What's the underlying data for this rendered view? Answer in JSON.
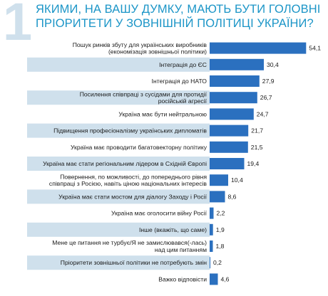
{
  "header": {
    "number": "1",
    "title": "Якими, на вашу думку, мають бути головні пріоритети у зовнішній політиці України?"
  },
  "colors": {
    "bar": "#2b70bf",
    "stripe": "#cfe0ec",
    "title": "#1b95c7",
    "number": "#cfe0ec"
  },
  "chart_data": {
    "type": "bar",
    "orientation": "horizontal",
    "title": "Якими, на вашу думку, мають бути головні пріоритети у зовнішній політиці України?",
    "xlim": [
      0,
      60
    ],
    "grid": false,
    "categories": [
      [
        "Пошук ринків збуту для українських виробників",
        "(економізація зовнішньої політики)"
      ],
      [
        "Інтеграція до ЄС"
      ],
      [
        "Інтеграція до НАТО"
      ],
      [
        "Посилення співпраці з сусідами для протидії",
        "російській агресії"
      ],
      [
        "Україна має бути нейтральною"
      ],
      [
        "Підвищення професіоналізму українських дипломатів"
      ],
      [
        "Україна має проводити багатовекторну політику"
      ],
      [
        "Україна має стати регіональним лідером в Східній Європі"
      ],
      [
        "Повернення, по можливості, до попереднього рівня",
        "співпраці з Росією, навіть ціною національних інтересів"
      ],
      [
        "Україна має стати мостом для діалогу Заходу і Росії"
      ],
      [
        "Україна має оголосити війну Росії"
      ],
      [
        "Інше (вкажіть, що саме)"
      ],
      [
        "Мене це питання не турбує/Я не замислювався(-лась)",
        "над цим питанням"
      ],
      [
        "Пріоритети зовнішньої політики не потребують змін"
      ],
      [
        "Важко відповісти"
      ]
    ],
    "values": [
      54.1,
      30.4,
      27.9,
      26.7,
      24.7,
      21.7,
      21.5,
      19.4,
      10.4,
      8.6,
      2.2,
      1.9,
      1.8,
      0.2,
      4.6
    ],
    "value_labels": [
      "54,1",
      "30,4",
      "27,9",
      "26,7",
      "24,7",
      "21,7",
      "21,5",
      "19,4",
      "10,4",
      "8,6",
      "2,2",
      "1,9",
      "1,8",
      "0,2",
      "4,6"
    ]
  }
}
